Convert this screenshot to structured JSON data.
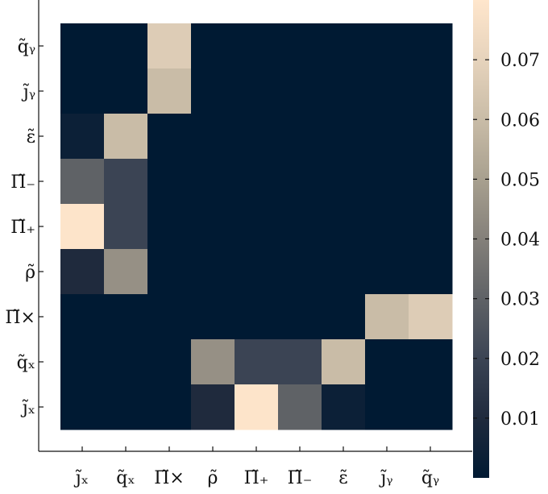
{
  "chart_data": {
    "type": "heatmap",
    "x_labels": [
      "j̃ₓ",
      "q̃ₓ",
      "Π̃×",
      "ρ̃",
      "Π̃₊",
      "Π̃₋",
      "ε̃",
      "j̃ᵧ",
      "q̃ᵧ"
    ],
    "y_labels": [
      "q̃ᵧ",
      "j̃ᵧ",
      "ε̃",
      "Π̃₋",
      "Π̃₊",
      "ρ̃",
      "Π̃×",
      "q̃ₓ",
      "j̃ₓ"
    ],
    "values": [
      [
        0,
        0,
        0.067,
        0,
        0,
        0,
        0,
        0,
        0
      ],
      [
        0,
        0,
        0.06,
        0,
        0,
        0,
        0,
        0,
        0
      ],
      [
        0.004,
        0.06,
        0,
        0,
        0,
        0,
        0,
        0,
        0
      ],
      [
        0.03,
        0.02,
        0,
        0,
        0,
        0,
        0,
        0,
        0
      ],
      [
        0.079,
        0.02,
        0,
        0,
        0,
        0,
        0,
        0,
        0
      ],
      [
        0.01,
        0.045,
        0,
        0,
        0,
        0,
        0,
        0,
        0
      ],
      [
        0,
        0,
        0,
        0,
        0,
        0,
        0,
        0.06,
        0.067
      ],
      [
        0,
        0,
        0,
        0.045,
        0.02,
        0.02,
        0.06,
        0,
        0
      ],
      [
        0,
        0,
        0,
        0.01,
        0.079,
        0.03,
        0.004,
        0,
        0
      ]
    ],
    "colorbar": {
      "ticks": [
        0.01,
        0.02,
        0.03,
        0.04,
        0.05,
        0.06,
        0.07
      ],
      "tick_labels": [
        "0.01",
        "0.02",
        "0.03",
        "0.04",
        "0.05",
        "0.06",
        "0.07"
      ],
      "range": [
        0,
        0.08
      ]
    },
    "colormap": [
      "#001a33",
      "#1f2a3d",
      "#3b4454",
      "#5f6266",
      "#84807a",
      "#a8a08f",
      "#c9bca7",
      "#e6d3bc",
      "#ffe6cc"
    ],
    "xlabel": "",
    "ylabel": "",
    "title": ""
  }
}
